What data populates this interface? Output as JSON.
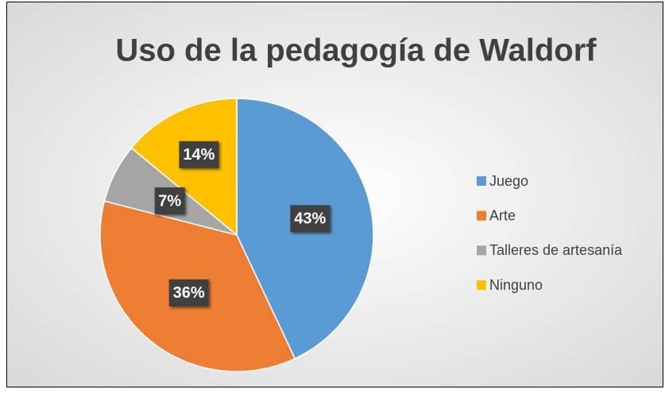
{
  "chart_data": {
    "type": "pie",
    "title": "Uso de la pedagogía de Waldorf",
    "categories": [
      "Juego",
      "Arte",
      "Talleres de artesanía",
      "Ninguno"
    ],
    "values": [
      43,
      36,
      7,
      14
    ],
    "value_labels": [
      "43%",
      "36%",
      "7%",
      "14%"
    ],
    "colors": [
      "#5b9bd5",
      "#ed7d31",
      "#a5a5a5",
      "#ffc000"
    ],
    "legend": "right"
  }
}
